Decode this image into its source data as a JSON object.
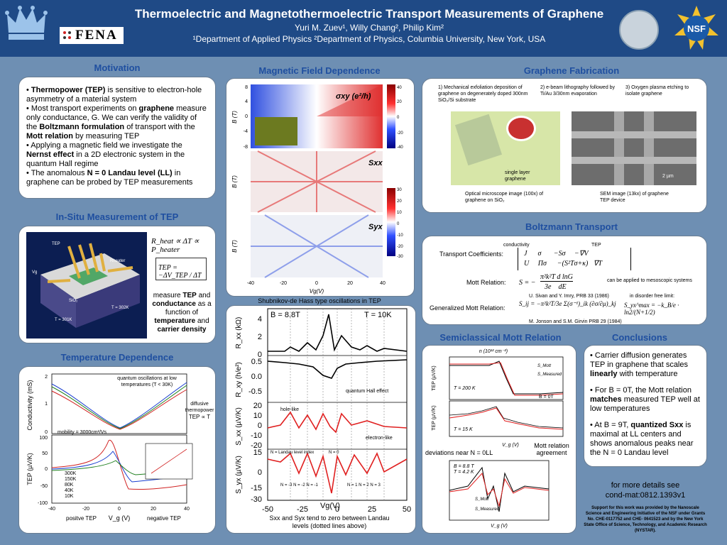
{
  "header": {
    "title": "Thermoelectric and Magnetothermoelectric Transport Measurements of Graphene",
    "authors": "Yuri M. Zuev¹, Willy Chang², Philip Kim²",
    "departments": "¹Department of Applied Physics      ²Department of Physics,   Columbia University, New York, USA",
    "fena_logo": "FENA",
    "nsf_logo": "NSF"
  },
  "motivation": {
    "title": "Motivation",
    "b1_prefix": "• ",
    "b1_strong": "Thermopower (TEP)",
    "b1_rest": " is sensitive to electron-hole asymmetry of a material system",
    "b2_prefix": "• Most transport experiments on ",
    "b2_strong1": "graphene",
    "b2_mid": " measure only conductance, G. We can verify the validity of the ",
    "b2_strong2": "Boltzmann formulation",
    "b2_mid2": " of transport with the ",
    "b2_strong3": "Mott relation",
    "b2_rest": " by measuring TEP",
    "b3_prefix": "• Applying a magnetic field we investigate the ",
    "b3_strong": "Nernst effect",
    "b3_rest": " in a 2D electronic system in the quantum Hall regime",
    "b4_prefix": "• The anomalous ",
    "b4_strong": "N = 0 Landau level (LL)",
    "b4_rest": " in graphene can be probed by TEP measurements"
  },
  "insitu": {
    "title": "In-Situ Measurement of TEP",
    "eq1": "R_heat ∝ ΔT ∝ P_heater",
    "eq2": "TEP = −ΔV_TEP / ΔT",
    "measure": "measure",
    "tep": "TEP",
    "and": "and",
    "conductance": "conductance",
    "as_func": "as a function of",
    "temperature": "temperature",
    "carrier_density": "carrier density",
    "labels": {
      "tep": "TEP",
      "heater": "Rheater",
      "vg": "Vg",
      "sio2": "SiO₂",
      "t1": "T = 302K",
      "t2": "T = 301K"
    }
  },
  "tempdep": {
    "title": "Temperature Dependence",
    "qo_note": "quantum oscillations at low temperatures (T < 30K)",
    "diffusive": "diffusive thermopower",
    "tep_prop": "TEP ∝ T",
    "mobility": "mobility = 3000cm²/Vs",
    "ylabel_top": "Conductivity (mS)",
    "ylabel_bot": "TEP (µV/K)",
    "xlabel": "V_g (V)",
    "positive": "positve TEP",
    "negative": "negative TEP",
    "legend": [
      "300K",
      "150K",
      "80K",
      "40K",
      "10K"
    ],
    "yticks_top": [
      "2",
      "1",
      "0"
    ],
    "yticks_bot": [
      "100",
      "50",
      "0",
      "-50",
      "-100"
    ],
    "xticks": [
      "-40",
      "-20",
      "0",
      "20",
      "40"
    ]
  },
  "magfield": {
    "title": "Magnetic Field Dependence",
    "sxy_label": "σxy (e²/h)",
    "sxx_label": "Sxx",
    "syx_label": "Syx",
    "ylabel": "B (T)",
    "xlabel": "Vg(V)",
    "xticks": [
      "-40",
      "-20",
      "0",
      "20",
      "40"
    ],
    "yticks": [
      "8",
      "4",
      "0",
      "-4",
      "-8"
    ],
    "cb1": [
      "40",
      "20",
      "0",
      "-20",
      "-40"
    ],
    "cb2": [
      "30",
      "20",
      "10",
      "0",
      "-10",
      "-20",
      "-30"
    ]
  },
  "sdh": {
    "title": "Shubnikov-de Hass type oscillations in TEP",
    "b_label": "B = 8.8T",
    "t_label": "T = 10K",
    "qh_effect": "quantum Hall effect",
    "hole_like": "hole-like",
    "electron_like": "electron-like",
    "ll_index": "N = Landau level index",
    "n0": "N = 0",
    "n_left": "N = -3  N = -2  N = -1",
    "n_right": "N = 1  N = 2  N = 3",
    "ylabels": [
      "R_xx (kΩ)",
      "R_xy (h/e²)",
      "S_xx (µV/K)",
      "S_yx (µV/K)"
    ],
    "xlabel": "Vg(V)",
    "xticks": [
      "-50",
      "-25",
      "0",
      "25",
      "50"
    ],
    "caption": "Sxx and Syx tend to zero between Landau levels (dotted lines above)"
  },
  "fab": {
    "title": "Graphene Fabrication",
    "step1": "1) Mechanical exfoliation deposition of graphene on degenerately doped 300nm SiO₂/Si substrate",
    "step2": "2) e-beam lithography followed by Ti/Au 3/30nm evaporation",
    "step3": "3) Oxygen plasma etching to isolate graphene",
    "single_layer": "single layer graphene",
    "optical": "Optical microscope image (100x) of graphene on SiO₂",
    "sem": "SEM image (13kx) of graphene TEP device",
    "scale": "2 µm"
  },
  "boltz": {
    "title": "Boltzmann Transport",
    "conductivity": "conductivity",
    "tep": "TEP",
    "coeff": "Transport Coefficients:",
    "mott": "Mott Relation:",
    "gen_mott": "Generalized Mott Relation:",
    "mesoscopic": "can be applied to mesoscopic systems",
    "ref1": "U. Sivan and Y. Imry, PRB 33 (1986)",
    "disorder": "in disorder free limit:",
    "ref2": "M. Jonson and S.M. Girvin PRB 29 (1984)"
  },
  "semi": {
    "title": "Semiclassical Mott Relation",
    "n_axis": "n (10¹² cm⁻²)",
    "smott": "S_Mott",
    "smeasured": "S_Measured",
    "t200": "T = 200 K",
    "t15": "T = 15 K",
    "b0": "B = 0T",
    "b88": "B = 8.8 T",
    "t42": "T = 4.2 K",
    "deviations": "deviations near N = 0LL",
    "agreement": "Mott relation agreement",
    "ylabel": "TEP (µV/K)",
    "xlabel": "V_g (V)",
    "xlabel2": "V_g (V)"
  },
  "concl": {
    "title": "Conclusions",
    "c1": "• Carrier diffusion generates TEP in graphene that scales ",
    "c1_strong": "linearly",
    "c1_rest": " with temperature",
    "c2": "• For B = 0T, the Mott relation ",
    "c2_strong": "matches",
    "c2_rest": " measured TEP well at low temperatures",
    "c3": "• At B = 9T, ",
    "c3_strong": "quantized Sxx",
    "c3_rest": " is maximal at LL centers and shows anomalous peaks near the N = 0 Landau level",
    "more": "for more details see",
    "arxiv": "cond-mat:0812.1393v1",
    "support": "Support for this work was provided by the Nanoscale Science and Engineering Initiative of the NSF under Grants No. CHE-0117752 and CHE- 0641523 and by the New York State Office of Science, Technology, and Academic Research (NYSTAR)."
  },
  "colors": {
    "header_bg": "#1f4a86",
    "section_title": "#1f4fa0",
    "poster_bg": "#6e8fb3"
  }
}
